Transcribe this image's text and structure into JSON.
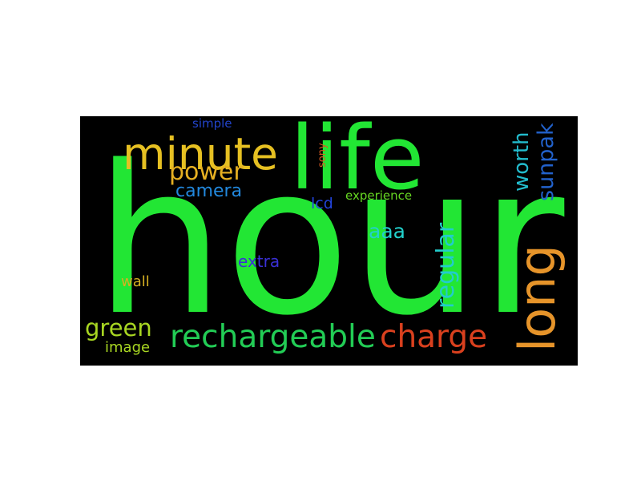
{
  "words": {
    "hour": {
      "text": "hour",
      "color": "#22e634"
    },
    "life": {
      "text": "life",
      "color": "#22e634"
    },
    "minute": {
      "text": "minute",
      "color": "#e6c022"
    },
    "long": {
      "text": "long",
      "color": "#e6942a"
    },
    "rechargeable": {
      "text": "rechargeable",
      "color": "#22cc55"
    },
    "charge": {
      "text": "charge",
      "color": "#d9401e"
    },
    "power": {
      "text": "power",
      "color": "#e6b022"
    },
    "regular": {
      "text": "regular",
      "color": "#22cccc"
    },
    "sunpak": {
      "text": "sunpak",
      "color": "#2262cc"
    },
    "worth": {
      "text": "worth",
      "color": "#22bbcc"
    },
    "green": {
      "text": "green",
      "color": "#a8d622"
    },
    "camera": {
      "text": "camera",
      "color": "#2288dd"
    },
    "aaa": {
      "text": "aaa",
      "color": "#22d0cc"
    },
    "extra": {
      "text": "extra",
      "color": "#3a30d6"
    },
    "wall": {
      "text": "wall",
      "color": "#d6b022"
    },
    "image": {
      "text": "image",
      "color": "#a8d622"
    },
    "lcd": {
      "text": "lcd",
      "color": "#2244dd"
    },
    "experience": {
      "text": "experience",
      "color": "#66d622"
    },
    "simple": {
      "text": "simple",
      "color": "#2244cc"
    },
    "sony": {
      "text": "sony",
      "color": "#d65a22"
    }
  }
}
